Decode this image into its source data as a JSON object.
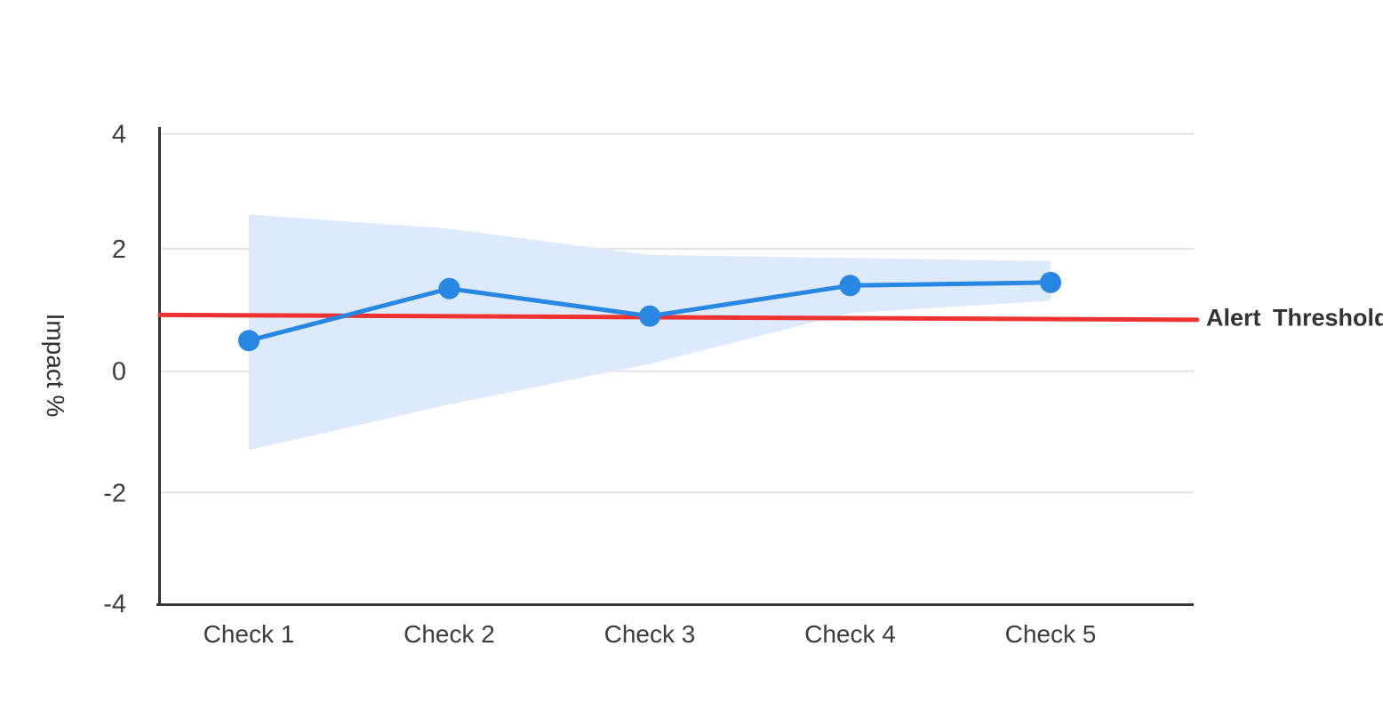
{
  "chart_data": {
    "type": "line",
    "title": "",
    "ylabel": "Impact %",
    "xlabel": "",
    "categories": [
      "Check 1",
      "Check 2",
      "Check 3",
      "Check 4",
      "Check 5"
    ],
    "series": [
      {
        "name": "Impact",
        "values": [
          0.5,
          1.35,
          0.9,
          1.4,
          1.45
        ],
        "color": "#2787e2",
        "marker": "circle"
      }
    ],
    "band": {
      "name": "confidence-band",
      "upper": [
        2.6,
        2.35,
        1.9,
        1.85,
        1.8
      ],
      "lower": [
        -1.3,
        -0.55,
        0.12,
        0.95,
        1.15
      ],
      "color": "#ddeafb"
    },
    "threshold": {
      "label": "Alert Threshold",
      "start_value": 0.92,
      "end_value": 0.84,
      "color": "#ee3231"
    },
    "yticks": [
      "4",
      "2",
      "0",
      "-2",
      "-4"
    ],
    "ytick_values": [
      4,
      2,
      0,
      -2,
      -4
    ],
    "ylim": [
      -4,
      4
    ],
    "grid": true,
    "legend_position": "none"
  },
  "colors": {
    "accent_blue": "#2787e2",
    "band_blue": "#ddeafb",
    "alert_red": "#ee3231",
    "grid": "#e4e4e4",
    "axis": "#343434",
    "text": "#3d3d3d"
  }
}
